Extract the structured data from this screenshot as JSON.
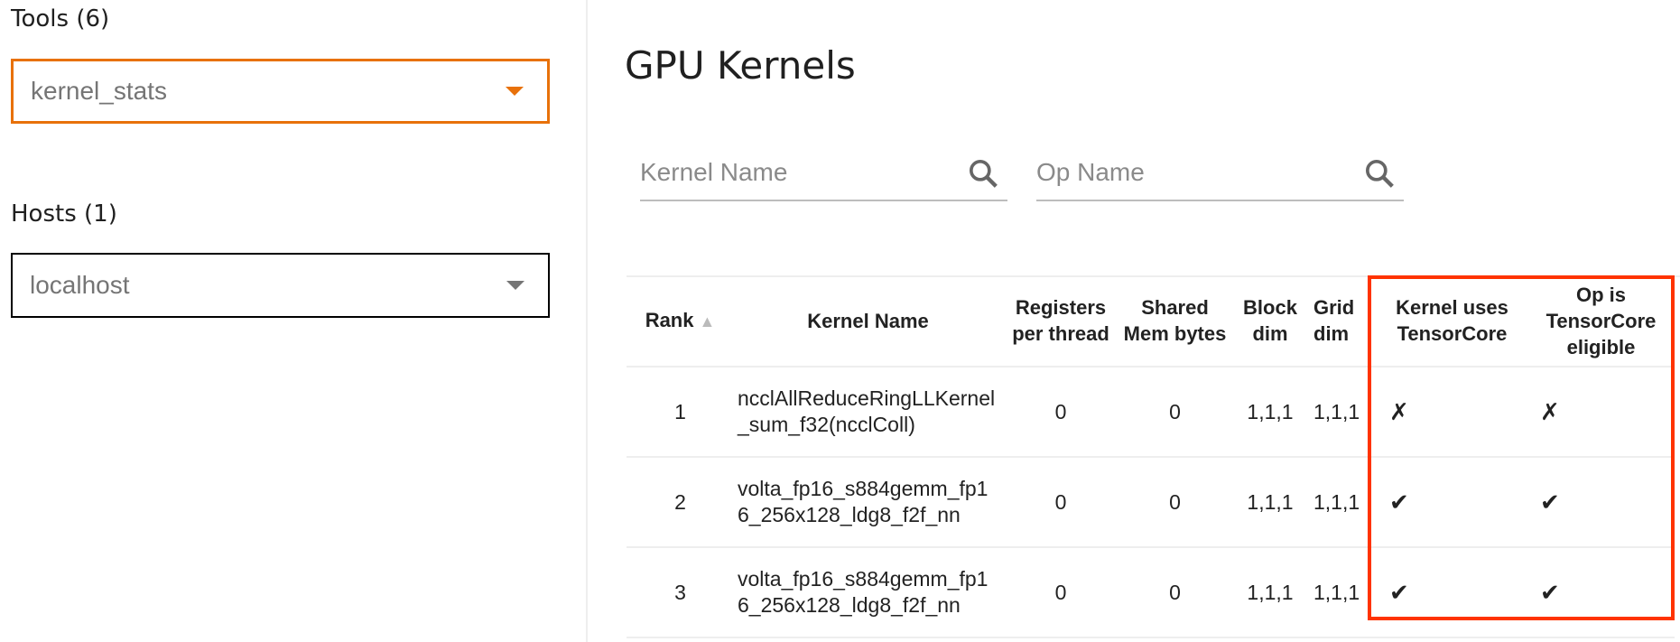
{
  "sidebar": {
    "tools_label": "Tools (6)",
    "tools_value": "kernel_stats",
    "hosts_label": "Hosts (1)",
    "hosts_value": "localhost"
  },
  "main": {
    "title": "GPU Kernels",
    "kernel_search_placeholder": "Kernel Name",
    "op_search_placeholder": "Op Name",
    "table": {
      "headers": [
        "Rank",
        "Kernel Name",
        "Registers per thread",
        "Shared Mem bytes",
        "Block dim",
        "Grid dim",
        "Kernel uses TensorCore",
        "Op is TensorCore eligible"
      ],
      "sort_indicator": "▲",
      "rows": [
        {
          "rank": "1",
          "kernel": "ncclAllReduceRingLLKernel_sum_f32(ncclColl)",
          "registers": "0",
          "shared": "0",
          "block": "1,1,1",
          "grid": "1,1,1",
          "uses_tc": "✗",
          "eligible": "✗"
        },
        {
          "rank": "2",
          "kernel": "volta_fp16_s884gemm_fp16_256x128_ldg8_f2f_nn",
          "registers": "0",
          "shared": "0",
          "block": "1,1,1",
          "grid": "1,1,1",
          "uses_tc": "✔",
          "eligible": "✔"
        },
        {
          "rank": "3",
          "kernel": "volta_fp16_s884gemm_fp16_256x128_ldg8_f2f_nn",
          "registers": "0",
          "shared": "0",
          "block": "1,1,1",
          "grid": "1,1,1",
          "uses_tc": "✔",
          "eligible": "✔"
        }
      ]
    }
  },
  "colors": {
    "accent": "#e8710a",
    "highlight": "#ff3300"
  }
}
